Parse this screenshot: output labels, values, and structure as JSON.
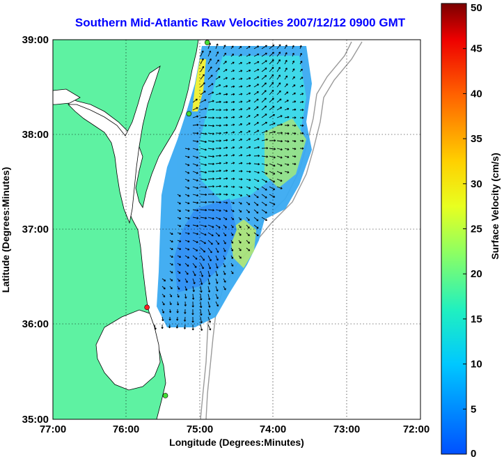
{
  "title": "Southern Mid-Atlantic Raw Velocities 2007/12/12 0900 GMT",
  "colors": {
    "title": "#0000ff",
    "land": "#5ef2a2",
    "water": "#ffffff",
    "coast": "#000000",
    "bathymetry": "#9a9a9a",
    "arrow": "#000000",
    "site_active": "#44dd33",
    "site_alert": "#ff2222"
  },
  "chart_data": {
    "type": "map",
    "title": "Southern Mid-Atlantic Raw Velocities 2007/12/12 0900 GMT",
    "xlabel": "Longitude (Degrees:Minutes)",
    "ylabel": "Latitude (Degrees:Minutes)",
    "x_ticks": [
      "77:00",
      "76:00",
      "75:00",
      "74:00",
      "73:00",
      "72:00"
    ],
    "y_ticks": [
      "39:00",
      "38:00",
      "37:00",
      "36:00",
      "35:00"
    ],
    "xlim": [
      -77,
      -72
    ],
    "ylim": [
      35,
      39
    ],
    "grid": true,
    "colorbar": {
      "label": "Surface Velocity (cm/s)",
      "ticks": [
        0,
        5,
        10,
        15,
        20,
        25,
        30,
        35,
        40,
        45,
        50
      ],
      "range": [
        0,
        50
      ]
    },
    "radar_sites": [
      {
        "lon": -74.9,
        "lat": 38.97,
        "status": "active"
      },
      {
        "lon": -75.15,
        "lat": 38.22,
        "status": "active"
      },
      {
        "lon": -75.72,
        "lat": 36.18,
        "status": "alert"
      },
      {
        "lon": -75.47,
        "lat": 35.25,
        "status": "active"
      }
    ]
  }
}
